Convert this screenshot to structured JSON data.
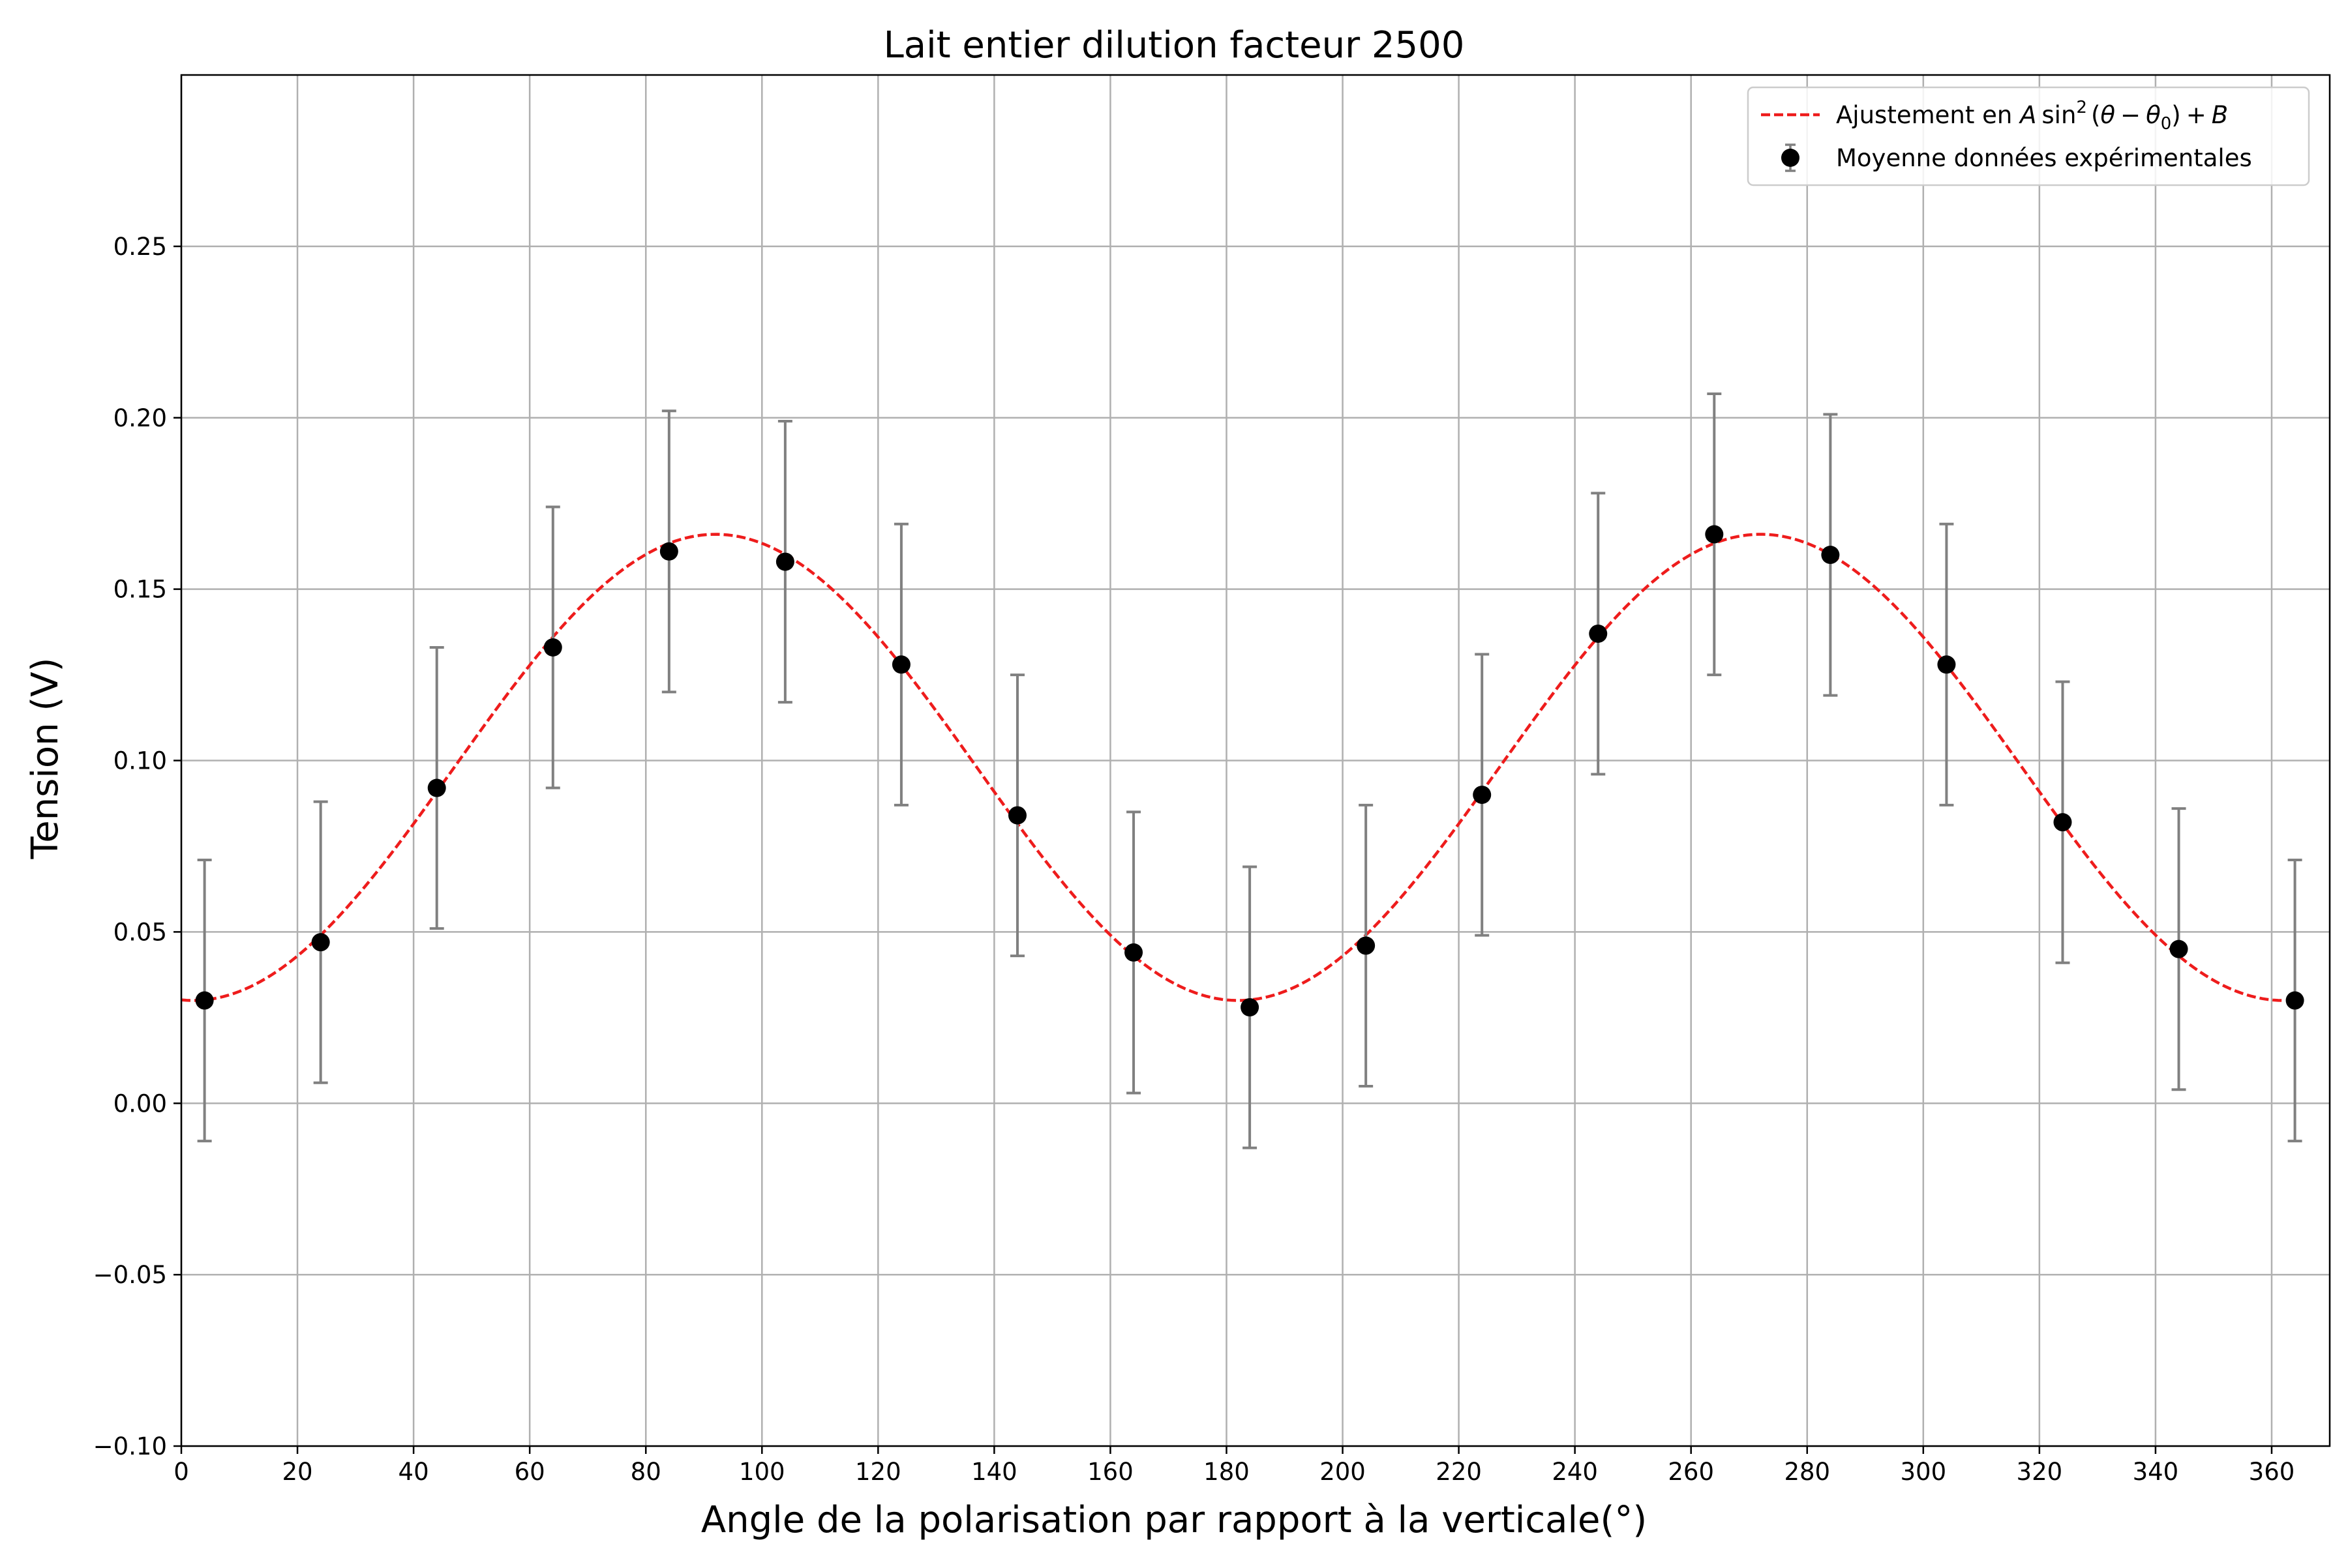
{
  "chart_data": {
    "type": "scatter",
    "title": "Lait entier dilution facteur 2500",
    "xlabel": "Angle de la polarisation par rapport à la verticale(°)",
    "ylabel": "Tension (V)",
    "xlim": [
      0,
      370
    ],
    "ylim": [
      -0.1,
      0.3
    ],
    "grid": true,
    "legend_position": "top-right",
    "x_ticks": [
      0,
      20,
      40,
      60,
      80,
      100,
      120,
      140,
      160,
      180,
      200,
      220,
      240,
      260,
      280,
      300,
      320,
      340,
      360
    ],
    "x_tick_labels": [
      "0",
      "20",
      "40",
      "60",
      "80",
      "100",
      "120",
      "140",
      "160",
      "180",
      "200",
      "220",
      "240",
      "260",
      "280",
      "300",
      "320",
      "340",
      "360"
    ],
    "y_ticks": [
      -0.1,
      -0.05,
      0.0,
      0.05,
      0.1,
      0.15,
      0.2,
      0.25
    ],
    "y_tick_labels": [
      "−0.10",
      "−0.05",
      "0.00",
      "0.05",
      "0.10",
      "0.15",
      "0.20",
      "0.25"
    ],
    "series": [
      {
        "name": "Ajustement en A sin²(θ − θ₀) + B",
        "kind": "fit-line",
        "style": "dashed",
        "color": "#ee1c1c",
        "model": "A*sin^2(theta - theta0) + B",
        "A": 0.136,
        "theta0": 2,
        "B": 0.03,
        "x_range": [
          0,
          362
        ]
      },
      {
        "name": "Moyenne données expérimentales",
        "kind": "errorbar-points",
        "marker_color": "#000000",
        "errorbar_color": "#808080",
        "x": [
          4,
          24,
          44,
          64,
          84,
          104,
          124,
          144,
          164,
          184,
          204,
          224,
          244,
          264,
          284,
          304,
          324,
          344,
          364
        ],
        "y": [
          0.03,
          0.047,
          0.092,
          0.133,
          0.161,
          0.158,
          0.128,
          0.084,
          0.044,
          0.028,
          0.046,
          0.09,
          0.137,
          0.166,
          0.16,
          0.128,
          0.082,
          0.045,
          0.03
        ],
        "yerr": [
          0.041,
          0.041,
          0.041,
          0.041,
          0.041,
          0.041,
          0.041,
          0.041,
          0.041,
          0.041,
          0.041,
          0.041,
          0.041,
          0.041,
          0.041,
          0.041,
          0.041,
          0.041,
          0.041
        ]
      }
    ],
    "legend": {
      "fit_prefix": "Ajustement en ",
      "fit_formula": {
        "amp": "A",
        "sin": "sin",
        "sup": "2",
        "open": "(",
        "theta": "θ",
        "minus": "−",
        "theta0": "θ",
        "sub0": "0",
        "close": ")",
        "plus": "+",
        "offset": "B"
      },
      "data_label": "Moyenne données expérimentales"
    }
  }
}
